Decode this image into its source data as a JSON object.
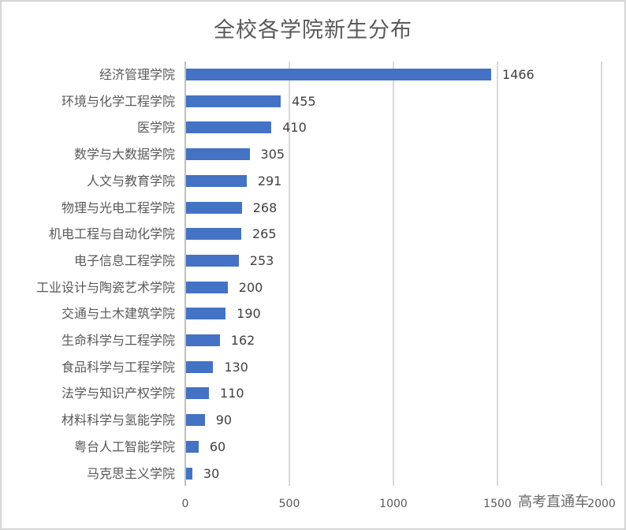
{
  "chart": {
    "title": "全校各学院新生分布",
    "watermark": "高考直通车",
    "bar_color": "#4472c4",
    "x_ticks": [
      "0",
      "500",
      "1000",
      "1500",
      "2000"
    ]
  },
  "chart_data": {
    "type": "bar",
    "orientation": "horizontal",
    "title": "全校各学院新生分布",
    "xlabel": "",
    "ylabel": "",
    "xlim": [
      0,
      2000
    ],
    "x_tick_labels": [
      0,
      500,
      1000,
      1500,
      2000
    ],
    "grid": true,
    "legend": null,
    "data_labels": true,
    "categories": [
      "经济管理学院",
      "环境与化学工程学院",
      "医学院",
      "数学与大数据学院",
      "人文与教育学院",
      "物理与光电工程学院",
      "机电工程与自动化学院",
      "电子信息工程学院",
      "工业设计与陶瓷艺术学院",
      "交通与土木建筑学院",
      "生命科学与工程学院",
      "食品科学与工程学院",
      "法学与知识产权学院",
      "材料科学与氢能学院",
      "粤台人工智能学院",
      "马克思主义学院"
    ],
    "values": [
      1466,
      455,
      410,
      305,
      291,
      268,
      265,
      253,
      200,
      190,
      162,
      130,
      110,
      90,
      60,
      30
    ],
    "series_color": "#4472c4"
  }
}
